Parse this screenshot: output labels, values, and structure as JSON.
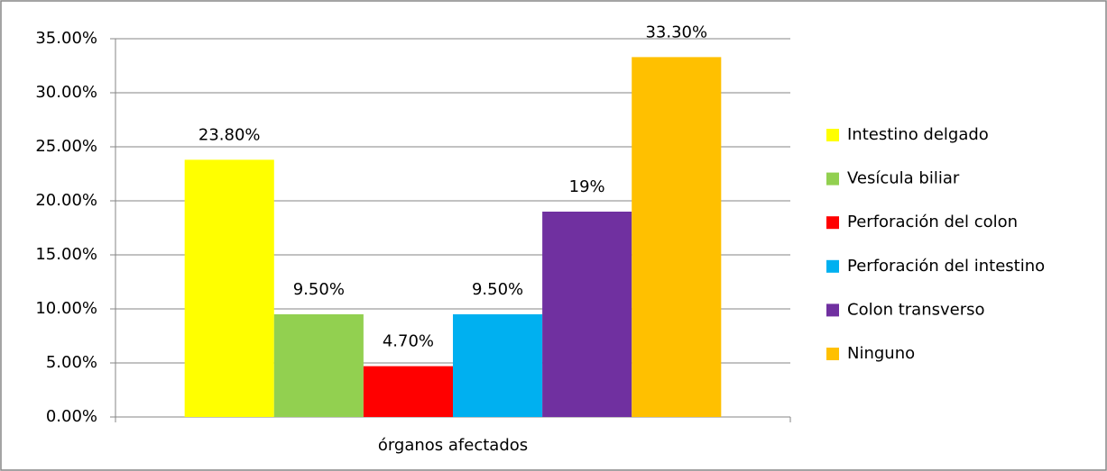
{
  "chart_data": {
    "type": "bar",
    "categories": [
      "órganos afectados"
    ],
    "series": [
      {
        "name": "Intestino delgado",
        "color": "#ffff00",
        "values": [
          23.8
        ],
        "value_labels": [
          "23.80%"
        ]
      },
      {
        "name": "Vesícula biliar",
        "color": "#92d050",
        "values": [
          9.5
        ],
        "value_labels": [
          "9.50%"
        ]
      },
      {
        "name": "Perforación del colon",
        "color": "#ff0000",
        "values": [
          4.7
        ],
        "value_labels": [
          "4.70%"
        ]
      },
      {
        "name": "Perforación del intestino",
        "color": "#00b0f0",
        "values": [
          9.5
        ],
        "value_labels": [
          "9.50%"
        ]
      },
      {
        "name": "Colon transverso",
        "color": "#7030a0",
        "values": [
          19
        ],
        "value_labels": [
          "19%"
        ]
      },
      {
        "name": "Ninguno",
        "color": "#ffc000",
        "values": [
          33.3
        ],
        "value_labels": [
          "33.30%"
        ]
      }
    ],
    "ylim": [
      0,
      35
    ],
    "yticks": [
      {
        "value": 0,
        "label": "0.00%"
      },
      {
        "value": 5,
        "label": "5.00%"
      },
      {
        "value": 10,
        "label": "10.00%"
      },
      {
        "value": 15,
        "label": "15.00%"
      },
      {
        "value": 20,
        "label": "20.00%"
      },
      {
        "value": 25,
        "label": "25.00%"
      },
      {
        "value": 30,
        "label": "30.00%"
      },
      {
        "value": 35,
        "label": "35.00%"
      }
    ],
    "grid": true,
    "legend": "right"
  }
}
